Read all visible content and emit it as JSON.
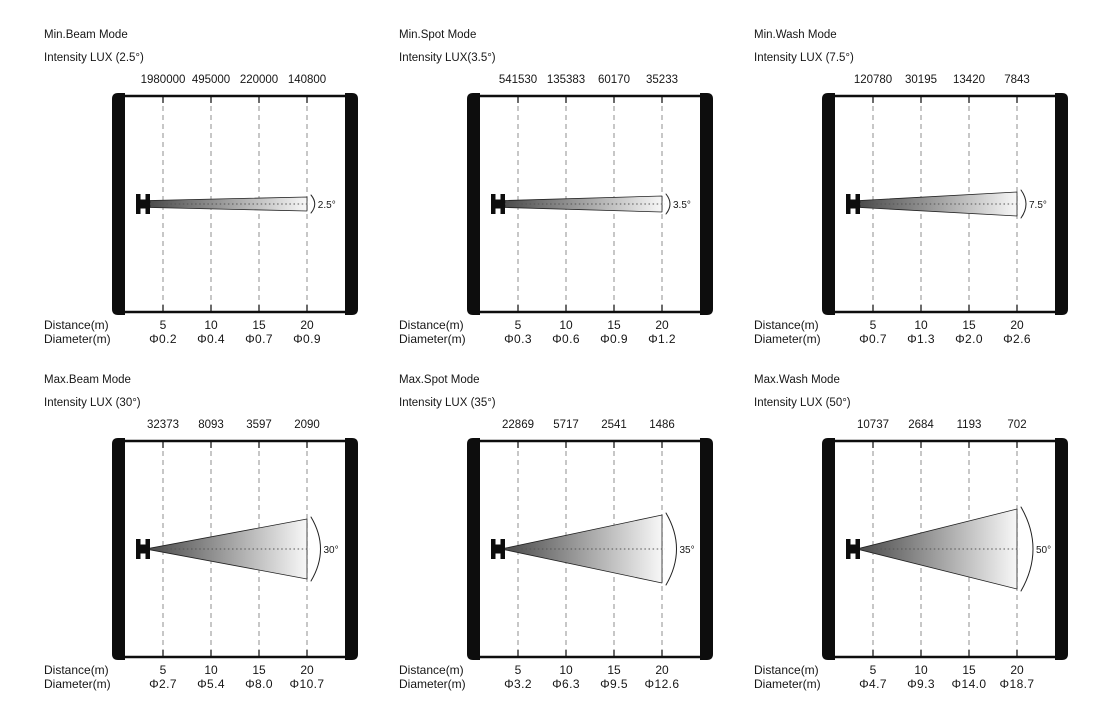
{
  "page": {
    "background": "#ffffff",
    "text_color": "#161616",
    "gridline_color": "#999999",
    "frame_color": "#0d0d0d",
    "beam_dark": "#4b4b4b",
    "beam_light": "#f7f7f7"
  },
  "labels": {
    "distance": "Distance(m)",
    "diameter": "Diameter(m)"
  },
  "panels": [
    {
      "title": "Min.Beam Mode",
      "subtitle": "Intensity LUX (2.5°)",
      "beam_angle_deg": 2.5,
      "angle_label": "2.5°",
      "intensities": [
        "1980000",
        "495000",
        "220000",
        "140800"
      ],
      "distances": [
        "5",
        "10",
        "15",
        "20"
      ],
      "diameters": [
        "Φ0.2",
        "Φ0.4",
        "Φ0.7",
        "Φ0.9"
      ]
    },
    {
      "title": "Min.Spot Mode",
      "subtitle": "Intensity LUX(3.5°)",
      "beam_angle_deg": 3.5,
      "angle_label": "3.5°",
      "intensities": [
        "541530",
        "135383",
        "60170",
        "35233"
      ],
      "distances": [
        "5",
        "10",
        "15",
        "20"
      ],
      "diameters": [
        "Φ0.3",
        "Φ0.6",
        "Φ0.9",
        "Φ1.2"
      ]
    },
    {
      "title": "Min.Wash Mode",
      "subtitle": "Intensity LUX (7.5°)",
      "beam_angle_deg": 7.5,
      "angle_label": "7.5°",
      "intensities": [
        "120780",
        "30195",
        "13420",
        "7843"
      ],
      "distances": [
        "5",
        "10",
        "15",
        "20"
      ],
      "diameters": [
        "Φ0.7",
        "Φ1.3",
        "Φ2.0",
        "Φ2.6"
      ]
    },
    {
      "title": "Max.Beam Mode",
      "subtitle": "Intensity LUX (30°)",
      "beam_angle_deg": 30,
      "angle_label": "30°",
      "intensities": [
        "32373",
        "8093",
        "3597",
        "2090"
      ],
      "distances": [
        "5",
        "10",
        "15",
        "20"
      ],
      "diameters": [
        "Φ2.7",
        "Φ5.4",
        "Φ8.0",
        "Φ10.7"
      ]
    },
    {
      "title": "Max.Spot Mode",
      "subtitle": "Intensity LUX (35°)",
      "beam_angle_deg": 35,
      "angle_label": "35°",
      "intensities": [
        "22869",
        "5717",
        "2541",
        "1486"
      ],
      "distances": [
        "5",
        "10",
        "15",
        "20"
      ],
      "diameters": [
        "Φ3.2",
        "Φ6.3",
        "Φ9.5",
        "Φ12.6"
      ]
    },
    {
      "title": "Max.Wash Mode",
      "subtitle": "Intensity LUX (50°)",
      "beam_angle_deg": 50,
      "angle_label": "50°",
      "intensities": [
        "10737",
        "2684",
        "1193",
        "702"
      ],
      "distances": [
        "5",
        "10",
        "15",
        "20"
      ],
      "diameters": [
        "Φ4.7",
        "Φ9.3",
        "Φ14.0",
        "Φ18.7"
      ]
    }
  ],
  "chart_data": [
    {
      "type": "table",
      "title": "Min.Beam Mode",
      "beam_angle_deg": 2.5,
      "x": [
        5,
        10,
        15,
        20
      ],
      "xlabel": "Distance(m)",
      "series": [
        {
          "name": "Intensity LUX",
          "values": [
            1980000,
            495000,
            220000,
            140800
          ]
        },
        {
          "name": "Diameter(m)",
          "values": [
            0.2,
            0.4,
            0.7,
            0.9
          ]
        }
      ]
    },
    {
      "type": "table",
      "title": "Min.Spot Mode",
      "beam_angle_deg": 3.5,
      "x": [
        5,
        10,
        15,
        20
      ],
      "xlabel": "Distance(m)",
      "series": [
        {
          "name": "Intensity LUX",
          "values": [
            541530,
            135383,
            60170,
            35233
          ]
        },
        {
          "name": "Diameter(m)",
          "values": [
            0.3,
            0.6,
            0.9,
            1.2
          ]
        }
      ]
    },
    {
      "type": "table",
      "title": "Min.Wash Mode",
      "beam_angle_deg": 7.5,
      "x": [
        5,
        10,
        15,
        20
      ],
      "xlabel": "Distance(m)",
      "series": [
        {
          "name": "Intensity LUX",
          "values": [
            120780,
            30195,
            13420,
            7843
          ]
        },
        {
          "name": "Diameter(m)",
          "values": [
            0.7,
            1.3,
            2.0,
            2.6
          ]
        }
      ]
    },
    {
      "type": "table",
      "title": "Max.Beam Mode",
      "beam_angle_deg": 30,
      "x": [
        5,
        10,
        15,
        20
      ],
      "xlabel": "Distance(m)",
      "series": [
        {
          "name": "Intensity LUX",
          "values": [
            32373,
            8093,
            3597,
            2090
          ]
        },
        {
          "name": "Diameter(m)",
          "values": [
            2.7,
            5.4,
            8.0,
            10.7
          ]
        }
      ]
    },
    {
      "type": "table",
      "title": "Max.Spot Mode",
      "beam_angle_deg": 35,
      "x": [
        5,
        10,
        15,
        20
      ],
      "xlabel": "Distance(m)",
      "series": [
        {
          "name": "Intensity LUX",
          "values": [
            22869,
            5717,
            2541,
            1486
          ]
        },
        {
          "name": "Diameter(m)",
          "values": [
            3.2,
            6.3,
            9.5,
            12.6
          ]
        }
      ]
    },
    {
      "type": "table",
      "title": "Max.Wash Mode",
      "beam_angle_deg": 50,
      "x": [
        5,
        10,
        15,
        20
      ],
      "xlabel": "Distance(m)",
      "series": [
        {
          "name": "Intensity LUX",
          "values": [
            10737,
            2684,
            1193,
            702
          ]
        },
        {
          "name": "Diameter(m)",
          "values": [
            4.7,
            9.3,
            14.0,
            18.7
          ]
        }
      ]
    }
  ]
}
